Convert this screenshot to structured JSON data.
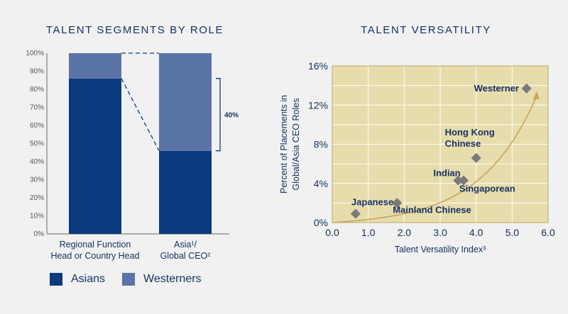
{
  "chart_data": [
    {
      "type": "bar",
      "stacked": true,
      "title": "TALENT SEGMENTS BY ROLE",
      "categories": [
        "Regional Function\nHead or Country Head",
        "Asia¹/\nGlobal CEO²"
      ],
      "series": [
        {
          "name": "Asians",
          "values": [
            86,
            46
          ],
          "color": "#0b3a7e"
        },
        {
          "name": "Westerners",
          "values": [
            14,
            54
          ],
          "color": "#5b74a8"
        }
      ],
      "ylim": [
        0,
        100
      ],
      "yticks": [
        "0%",
        "10%",
        "20%",
        "30%",
        "40%",
        "50%",
        "60%",
        "70%",
        "80%",
        "90%",
        "100%"
      ],
      "annotation": "40%",
      "legend_position": "bottom"
    },
    {
      "type": "scatter",
      "title": "TALENT VERSATILITY",
      "xlabel": "Talent Versatility Index³",
      "ylabel_lines": [
        "Percent of Placements in",
        "Global/Asia CEO Roles"
      ],
      "xlim": [
        0,
        6
      ],
      "ylim": [
        0,
        16
      ],
      "xticks": [
        "0.0",
        "1.0",
        "2.0",
        "3.0",
        "4.0",
        "5.0",
        "6.0"
      ],
      "yticks": [
        "0%",
        "4%",
        "8%",
        "12%",
        "16%"
      ],
      "grid": true,
      "trend": "exponential curve with arrow",
      "points": [
        {
          "label": "Japanese",
          "x": 0.65,
          "y": 0.9
        },
        {
          "label": "Mainland Chinese",
          "x": 1.8,
          "y": 2.0
        },
        {
          "label": "Indian",
          "x": 3.5,
          "y": 4.3
        },
        {
          "label": "Singaporean",
          "x": 3.65,
          "y": 4.3
        },
        {
          "label": "Hong Kong\nChinese",
          "x": 4.0,
          "y": 6.6
        },
        {
          "label": "Westerner",
          "x": 5.4,
          "y": 13.7
        }
      ],
      "colors": {
        "plot_bg": "#e7dcac",
        "grid": "#ffffff",
        "marker": "#7a7a7a",
        "trend": "#c9a45a"
      }
    }
  ]
}
